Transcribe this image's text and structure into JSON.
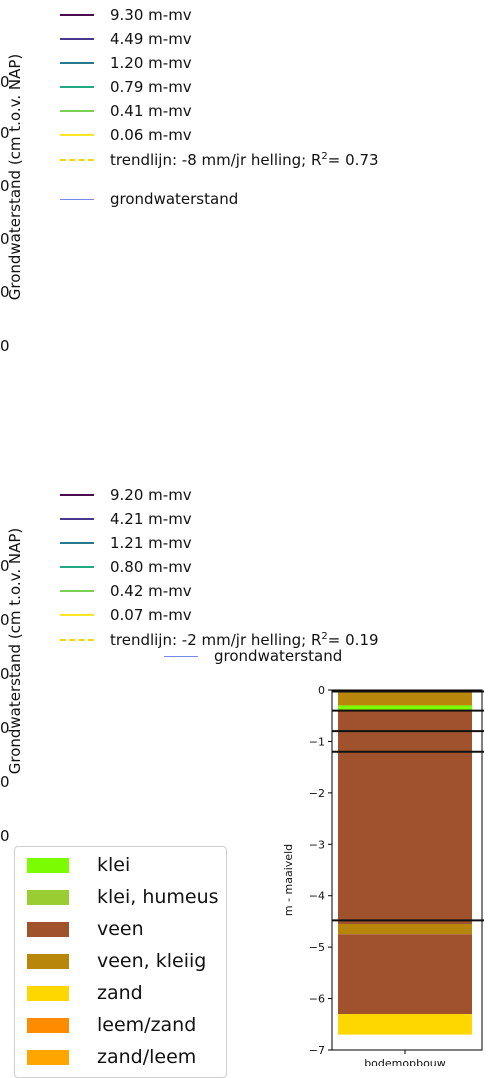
{
  "chart_data": [
    {
      "type": "line",
      "ylabel": "Grondwaterstand (cm t.o.v. NAP)",
      "ytick_fragments": [
        "0",
        "0",
        "0",
        "0",
        "0",
        "0"
      ],
      "legend": [
        {
          "label": "9.30 m-mv",
          "color": "#4a0c4f",
          "style": "solid"
        },
        {
          "label": "4.49 m-mv",
          "color": "#46378c",
          "style": "solid"
        },
        {
          "label": "1.20 m-mv",
          "color": "#2a7a8e",
          "style": "solid"
        },
        {
          "label": "0.79 m-mv",
          "color": "#22a884",
          "style": "solid"
        },
        {
          "label": "0.41 m-mv",
          "color": "#7ad151",
          "style": "solid"
        },
        {
          "label": "0.06 m-mv",
          "color": "#fde725",
          "style": "solid"
        },
        {
          "label": "trendlijn: -8 mm/jr helling; R",
          "sup": "2",
          "suffix": "= 0.73",
          "color": "#f5d800",
          "style": "dashed"
        },
        {
          "label": "grondwaterstand",
          "color": "#7b86f0",
          "style": "solid"
        }
      ]
    },
    {
      "type": "line",
      "ylabel": "Grondwaterstand (cm t.o.v. NAP)",
      "ytick_fragments": [
        "0",
        "0",
        "0",
        "0",
        "0",
        "0"
      ],
      "legend": [
        {
          "label": "9.20 m-mv",
          "color": "#4a0c4f",
          "style": "solid"
        },
        {
          "label": "4.21 m-mv",
          "color": "#46378c",
          "style": "solid"
        },
        {
          "label": "1.21 m-mv",
          "color": "#2a7a8e",
          "style": "solid"
        },
        {
          "label": "0.80 m-mv",
          "color": "#22a884",
          "style": "solid"
        },
        {
          "label": "0.42 m-mv",
          "color": "#7ad151",
          "style": "solid"
        },
        {
          "label": "0.07 m-mv",
          "color": "#fde725",
          "style": "solid"
        },
        {
          "label": "trendlijn: -2 mm/jr helling; R",
          "sup": "2",
          "suffix": "= 0.19",
          "color": "#f5d800",
          "style": "dashed"
        },
        {
          "label": "grondwaterstand",
          "color": "#7b86f0",
          "style": "solid"
        }
      ]
    },
    {
      "type": "bar",
      "ylabel": "m - maaiveld",
      "xlabel": "bodemopbouw",
      "ylim": [
        -7.0,
        0
      ],
      "yticks": [
        "0",
        "−1",
        "−2",
        "−3",
        "−4",
        "−5",
        "−6",
        "−7"
      ],
      "layers": [
        {
          "soil": "veen, kleiig",
          "top": 0.0,
          "bottom": -0.3,
          "color": "#b8860b"
        },
        {
          "soil": "klei",
          "top": -0.3,
          "bottom": -0.38,
          "color": "#7cfc00"
        },
        {
          "soil": "veen",
          "top": -0.38,
          "bottom": -4.55,
          "color": "#a0522d"
        },
        {
          "soil": "veen, kleiig",
          "top": -4.55,
          "bottom": -4.75,
          "color": "#b8860b"
        },
        {
          "soil": "veen",
          "top": -4.75,
          "bottom": -6.3,
          "color": "#a0522d"
        },
        {
          "soil": "zand",
          "top": -6.3,
          "bottom": -6.7,
          "color": "#ffd700"
        }
      ],
      "hlines": [
        -0.03,
        -0.4,
        -0.8,
        -1.2,
        -4.48
      ]
    }
  ],
  "soil_legend": [
    {
      "label": "klei",
      "color": "#7cfc00"
    },
    {
      "label": "klei, humeus",
      "color": "#9acd32"
    },
    {
      "label": "veen",
      "color": "#a0522d"
    },
    {
      "label": "veen, kleiig",
      "color": "#b8860b"
    },
    {
      "label": "zand",
      "color": "#ffd700"
    },
    {
      "label": "leem/zand",
      "color": "#ff8c00"
    },
    {
      "label": "zand/leem",
      "color": "#ffa500"
    }
  ]
}
